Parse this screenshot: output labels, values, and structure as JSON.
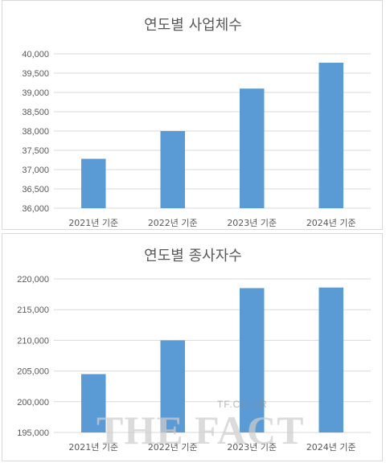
{
  "chart_data": [
    {
      "type": "bar",
      "title": "연도별 사업체수",
      "categories": [
        "2021년 기준",
        "2022년 기준",
        "2023년 기준",
        "2024년 기준"
      ],
      "values": [
        37280,
        38000,
        39100,
        39770
      ],
      "ylim": [
        36000,
        40000
      ],
      "yticks": [
        "36,000",
        "36,500",
        "37,000",
        "37,500",
        "38,000",
        "38,500",
        "39,000",
        "39,500",
        "40,000"
      ],
      "bar_color": "#5b9bd5",
      "grid": true
    },
    {
      "type": "bar",
      "title": "연도별 종사자수",
      "categories": [
        "2021년 기준",
        "2022년 기준",
        "2023년 기준",
        "2024년 기준"
      ],
      "values": [
        204500,
        210000,
        218500,
        218600
      ],
      "ylim": [
        195000,
        220000
      ],
      "yticks": [
        "195,000",
        "200,000",
        "205,000",
        "210,000",
        "215,000",
        "220,000"
      ],
      "bar_color": "#5b9bd5",
      "grid": true
    }
  ],
  "watermark": {
    "site": "TF.CO.KR",
    "brand": "THE FACT"
  }
}
